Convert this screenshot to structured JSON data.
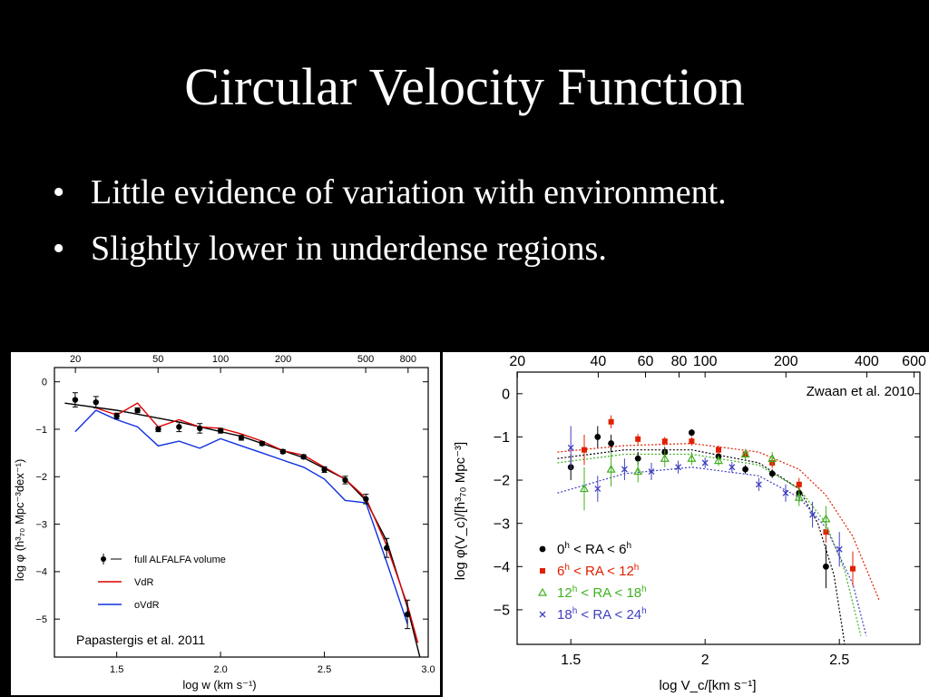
{
  "slide": {
    "title": "Circular Velocity Function",
    "bullets": [
      "Little evidence of variation with environment.",
      "Slightly lower in underdense regions."
    ]
  },
  "chart_data": [
    {
      "type": "line",
      "caption": "Papastergis et al. 2011",
      "xlabel": "log w (km s⁻¹)",
      "ylabel": "log φ (h³₇₀ Mpc⁻³dex⁻¹)",
      "xlim": [
        1.2,
        3.0
      ],
      "ylim": [
        -5.8,
        0.3
      ],
      "x_ticks": [
        1.5,
        2.0,
        2.5,
        3.0
      ],
      "x_tick_labels": [
        "1.5",
        "2.0",
        "2.5",
        "3.0"
      ],
      "y_ticks": [
        0,
        -1,
        -2,
        -3,
        -4,
        -5
      ],
      "y_tick_labels": [
        "0",
        "−1",
        "−2",
        "−3",
        "−4",
        "−5"
      ],
      "top_ticks": [
        20,
        50,
        100,
        200,
        500,
        800
      ],
      "top_tick_labels": [
        "20",
        "50",
        "100",
        "200",
        "500",
        "800"
      ],
      "legend": [
        {
          "label": "full ALFALFA volume",
          "color": "#000000",
          "style": "errorbar"
        },
        {
          "label": "VdR",
          "color": "#e00000",
          "style": "line"
        },
        {
          "label": "oVdR",
          "color": "#1030e0",
          "style": "line"
        }
      ],
      "fit": {
        "x": [
          1.25,
          1.5,
          1.8,
          2.1,
          2.4,
          2.6,
          2.7,
          2.8,
          2.9,
          2.96
        ],
        "y": [
          -0.45,
          -0.6,
          -0.85,
          -1.15,
          -1.6,
          -2.05,
          -2.5,
          -3.35,
          -4.75,
          -5.8
        ]
      },
      "series": [
        {
          "name": "full ALFALFA volume",
          "kind": "points",
          "color": "#000000",
          "x": [
            1.3,
            1.4,
            1.5,
            1.6,
            1.7,
            1.8,
            1.9,
            2.0,
            2.1,
            2.2,
            2.3,
            2.4,
            2.5,
            2.6,
            2.7,
            2.8,
            2.9
          ],
          "y": [
            -0.38,
            -0.43,
            -0.72,
            -0.6,
            -1.0,
            -0.95,
            -0.98,
            -1.03,
            -1.18,
            -1.3,
            -1.47,
            -1.58,
            -1.85,
            -2.07,
            -2.47,
            -3.5,
            -4.9
          ],
          "err": [
            0.15,
            0.12,
            0.06,
            0.05,
            0.05,
            0.1,
            0.1,
            0.05,
            0.05,
            0.04,
            0.04,
            0.04,
            0.06,
            0.08,
            0.1,
            0.2,
            0.3
          ]
        },
        {
          "name": "VdR",
          "kind": "line",
          "color": "#e00000",
          "x": [
            1.4,
            1.5,
            1.6,
            1.7,
            1.8,
            1.9,
            2.0,
            2.1,
            2.2,
            2.3,
            2.4,
            2.5,
            2.6,
            2.7,
            2.8,
            2.9,
            2.95
          ],
          "y": [
            -0.55,
            -0.7,
            -0.45,
            -0.95,
            -0.8,
            -0.95,
            -0.98,
            -1.1,
            -1.25,
            -1.45,
            -1.55,
            -1.8,
            -2.05,
            -2.45,
            -3.45,
            -4.7,
            -5.5
          ]
        },
        {
          "name": "oVdR",
          "kind": "line",
          "color": "#1030e0",
          "x": [
            1.3,
            1.4,
            1.5,
            1.6,
            1.7,
            1.8,
            1.9,
            2.0,
            2.1,
            2.2,
            2.3,
            2.4,
            2.5,
            2.6,
            2.7,
            2.8,
            2.9
          ],
          "y": [
            -1.05,
            -0.6,
            -0.8,
            -0.95,
            -1.35,
            -1.25,
            -1.4,
            -1.2,
            -1.35,
            -1.5,
            -1.65,
            -1.8,
            -2.05,
            -2.5,
            -2.55,
            -3.8,
            -5.1
          ]
        }
      ]
    },
    {
      "type": "scatter",
      "caption": "Zwaan et al. 2010",
      "xlabel": "log V_c/[km s⁻¹]",
      "ylabel": "log φ(V_c)/[h³₇₀ Mpc⁻³]",
      "xlim": [
        1.3,
        2.8
      ],
      "ylim": [
        -5.8,
        0.5
      ],
      "x_ticks": [
        1.5,
        2.0,
        2.5
      ],
      "x_tick_labels": [
        "1.5",
        "2",
        "2.5"
      ],
      "y_ticks": [
        0,
        -1,
        -2,
        -3,
        -4,
        -5
      ],
      "y_tick_labels": [
        "0",
        "−1",
        "−2",
        "−3",
        "−4",
        "−5"
      ],
      "top_ticks": [
        20,
        40,
        60,
        80,
        100,
        200,
        400,
        600
      ],
      "top_tick_labels": [
        "20",
        "40",
        "60",
        "80",
        "100",
        "200",
        "400",
        "600"
      ],
      "legend": [
        {
          "label_parts": [
            "0",
            "h",
            " < RA < 6",
            "h"
          ],
          "color": "#000000",
          "marker": "circle"
        },
        {
          "label_parts": [
            "6",
            "h",
            " < RA < 12",
            "h"
          ],
          "color": "#e02000",
          "marker": "square"
        },
        {
          "label_parts": [
            "12",
            "h",
            " < RA < 18",
            "h"
          ],
          "color": "#40b020",
          "marker": "triangle"
        },
        {
          "label_parts": [
            "18",
            "h",
            " < RA < 24",
            "h"
          ],
          "color": "#4040c0",
          "marker": "cross"
        }
      ],
      "series": [
        {
          "name": "0h < RA < 6h",
          "marker": "circle",
          "color": "#000000",
          "x": [
            1.5,
            1.6,
            1.65,
            1.75,
            1.85,
            1.95,
            2.05,
            2.15,
            2.25,
            2.35,
            2.45
          ],
          "y": [
            -1.7,
            -1.0,
            -1.15,
            -1.5,
            -1.35,
            -0.9,
            -1.45,
            -1.75,
            -1.85,
            -2.3,
            -4.0
          ],
          "err": [
            0.3,
            0.25,
            0.2,
            0.15,
            0.12,
            0.08,
            0.1,
            0.1,
            0.1,
            0.2,
            0.5
          ]
        },
        {
          "name": "6h < RA < 12h",
          "marker": "square",
          "color": "#e02000",
          "x": [
            1.55,
            1.65,
            1.75,
            1.85,
            1.95,
            2.05,
            2.15,
            2.25,
            2.35,
            2.45,
            2.55
          ],
          "y": [
            -1.3,
            -0.65,
            -1.05,
            -1.1,
            -1.1,
            -1.3,
            -1.4,
            -1.6,
            -2.1,
            -3.2,
            -4.05
          ],
          "err": [
            0.35,
            0.15,
            0.12,
            0.1,
            0.1,
            0.1,
            0.1,
            0.12,
            0.15,
            0.25,
            0.4
          ]
        },
        {
          "name": "12h < RA < 18h",
          "marker": "triangle",
          "color": "#40b020",
          "x": [
            1.55,
            1.65,
            1.75,
            1.85,
            1.95,
            2.05,
            2.15,
            2.25,
            2.35,
            2.45
          ],
          "y": [
            -2.2,
            -1.75,
            -1.8,
            -1.5,
            -1.5,
            -1.55,
            -1.4,
            -1.5,
            -2.4,
            -2.9
          ],
          "err": [
            0.5,
            0.4,
            0.25,
            0.2,
            0.15,
            0.12,
            0.12,
            0.15,
            0.2,
            0.3
          ]
        },
        {
          "name": "18h < RA < 24h",
          "marker": "cross",
          "color": "#4040c0",
          "x": [
            1.5,
            1.6,
            1.7,
            1.8,
            1.9,
            2.0,
            2.1,
            2.2,
            2.3,
            2.4,
            2.5
          ],
          "y": [
            -1.25,
            -2.2,
            -1.75,
            -1.8,
            -1.7,
            -1.6,
            -1.7,
            -2.1,
            -2.3,
            -2.8,
            -3.6
          ],
          "err": [
            0.5,
            0.3,
            0.25,
            0.2,
            0.15,
            0.12,
            0.12,
            0.15,
            0.2,
            0.3,
            0.4
          ]
        }
      ],
      "fits": [
        {
          "name": "6h < RA < 12h",
          "color": "#e02000",
          "x": [
            1.45,
            1.7,
            1.95,
            2.2,
            2.35,
            2.45,
            2.55,
            2.65
          ],
          "y": [
            -1.35,
            -1.2,
            -1.15,
            -1.35,
            -1.75,
            -2.35,
            -3.3,
            -4.8
          ]
        },
        {
          "name": "0h < RA < 6h",
          "color": "#000000",
          "x": [
            1.45,
            1.7,
            1.95,
            2.2,
            2.35,
            2.42,
            2.48,
            2.52
          ],
          "y": [
            -1.5,
            -1.3,
            -1.3,
            -1.6,
            -2.2,
            -3.0,
            -4.2,
            -5.8
          ]
        },
        {
          "name": "12h < RA < 18h",
          "color": "#40b020",
          "x": [
            1.45,
            1.7,
            1.95,
            2.2,
            2.35,
            2.45,
            2.52,
            2.58
          ],
          "y": [
            -1.6,
            -1.4,
            -1.4,
            -1.65,
            -2.2,
            -3.0,
            -4.1,
            -5.6
          ]
        },
        {
          "name": "18h < RA < 24h",
          "color": "#4040c0",
          "x": [
            1.45,
            1.7,
            1.95,
            2.2,
            2.35,
            2.45,
            2.55,
            2.6
          ],
          "y": [
            -2.3,
            -1.85,
            -1.7,
            -1.9,
            -2.4,
            -3.1,
            -4.4,
            -5.6
          ]
        }
      ]
    }
  ]
}
